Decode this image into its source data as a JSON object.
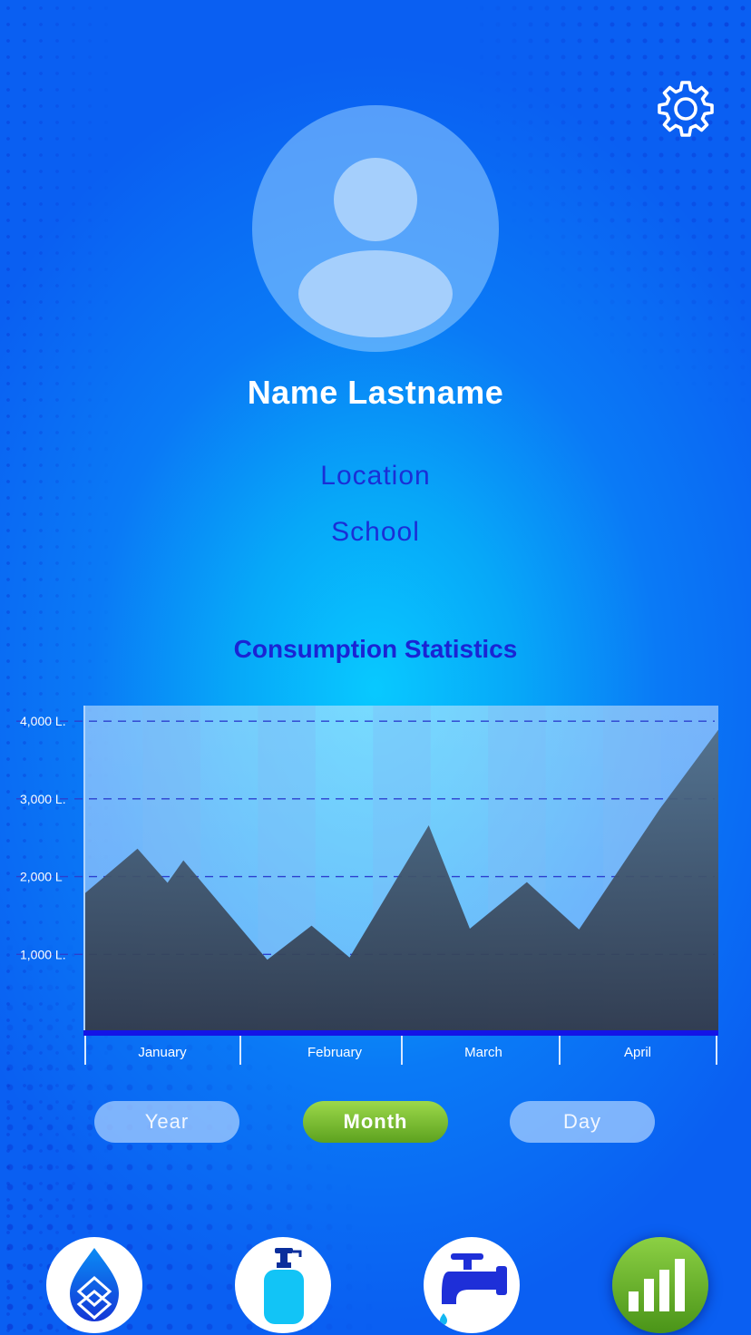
{
  "profile": {
    "name": "Name Lastname",
    "location": "Location",
    "school": "School"
  },
  "statistics": {
    "title": "Consumption Statistics"
  },
  "chart_data": {
    "type": "area",
    "title": "Consumption Statistics",
    "xlabel": "",
    "ylabel": "",
    "categories": [
      "January",
      "February",
      "March",
      "April"
    ],
    "y_ticks": [
      {
        "value": 4000,
        "label": "4,000 L."
      },
      {
        "value": 3000,
        "label": "3,000 L."
      },
      {
        "value": 2000,
        "label": "2,000 L"
      },
      {
        "value": 1000,
        "label": "1,000 L."
      }
    ],
    "ylim": [
      0,
      4200
    ],
    "grid": true,
    "x": [
      0.0,
      0.33,
      0.52,
      0.62,
      1.15,
      1.43,
      1.67,
      2.17,
      2.43,
      2.79,
      3.12,
      3.63,
      4.0
    ],
    "values": [
      1790,
      2360,
      1920,
      2210,
      930,
      1370,
      960,
      2660,
      1330,
      1930,
      1320,
      2870,
      3890
    ],
    "colors": {
      "area_top": "#2a3a52",
      "area_bottom": "#343f52",
      "axis": "#1414e6",
      "grid": "#2b3fcf"
    }
  },
  "period_selector": {
    "options": [
      {
        "label": "Year",
        "active": false
      },
      {
        "label": "Month",
        "active": true
      },
      {
        "label": "Day",
        "active": false
      }
    ]
  },
  "bottom_nav": {
    "items": [
      {
        "icon": "water-drop-icon",
        "active": false
      },
      {
        "icon": "soap-dispenser-icon",
        "active": false
      },
      {
        "icon": "water-tap-icon",
        "active": false
      },
      {
        "icon": "bar-chart-icon",
        "active": true
      }
    ]
  },
  "colors": {
    "background": "#0a7af6",
    "accent_blue": "#1a2fd6",
    "active_green": "#6cb52a"
  }
}
